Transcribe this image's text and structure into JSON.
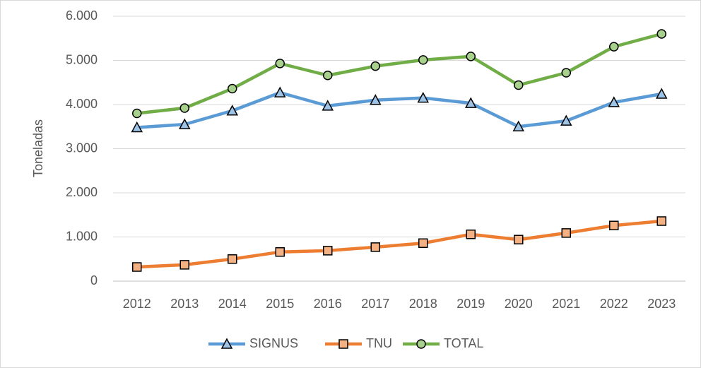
{
  "chart_data": {
    "type": "line",
    "y_axis_label": "Toneladas",
    "categories": [
      "2012",
      "2013",
      "2014",
      "2015",
      "2016",
      "2017",
      "2018",
      "2019",
      "2020",
      "2021",
      "2022",
      "2023"
    ],
    "series": [
      {
        "name": "SIGNUS",
        "color": "#5b9bd5",
        "marker": "triangle",
        "marker_fill": "#9dc3e6",
        "values": [
          3480,
          3550,
          3860,
          4270,
          3970,
          4100,
          4150,
          4030,
          3500,
          3630,
          4050,
          4240
        ]
      },
      {
        "name": "TNU",
        "color": "#ed7d31",
        "marker": "square",
        "marker_fill": "#f4b183",
        "values": [
          320,
          370,
          500,
          660,
          690,
          770,
          860,
          1060,
          940,
          1090,
          1260,
          1360
        ]
      },
      {
        "name": "TOTAL",
        "color": "#70ad47",
        "marker": "circle",
        "marker_fill": "#a9d18e",
        "values": [
          3800,
          3920,
          4360,
          4930,
          4660,
          4870,
          5010,
          5090,
          4440,
          4720,
          5310,
          5600
        ]
      }
    ],
    "ylim": [
      0,
      6000
    ],
    "yticks": [
      0,
      {
        "value": 1000,
        "label": "1.000"
      },
      {
        "value": 2000,
        "label": "2.000"
      },
      {
        "value": 3000,
        "label": "3.000"
      },
      {
        "value": 4000,
        "label": "4.000"
      },
      {
        "value": 5000,
        "label": "5.000"
      },
      {
        "value": 6000,
        "label": "6.000"
      }
    ],
    "grid": true,
    "legend": "bottom"
  }
}
